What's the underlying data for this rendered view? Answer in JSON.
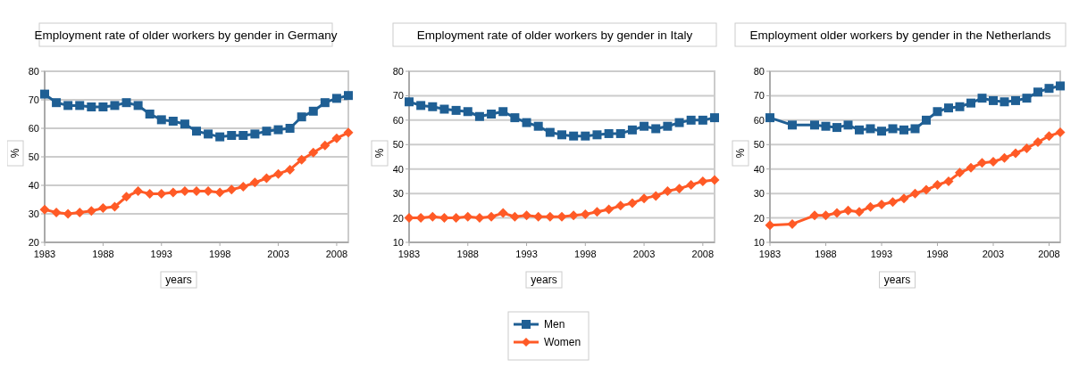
{
  "chart_data": [
    {
      "type": "line",
      "title": "Employment rate of older workers by gender in Germany",
      "xlabel": "years",
      "ylabel": "%",
      "x": [
        1983,
        1984,
        1985,
        1986,
        1987,
        1988,
        1989,
        1990,
        1991,
        1992,
        1993,
        1994,
        1995,
        1996,
        1997,
        1998,
        1999,
        2000,
        2001,
        2002,
        2003,
        2004,
        2005,
        2006,
        2007,
        2008,
        2009
      ],
      "xlim": [
        1983,
        2009
      ],
      "xticks": [
        1983,
        1988,
        1993,
        1998,
        2003,
        2008
      ],
      "ylim": [
        20,
        80
      ],
      "yticks": [
        20,
        30,
        40,
        50,
        60,
        70,
        80
      ],
      "grid": "y",
      "legend": false,
      "series": [
        {
          "color": "#1f5f94",
          "marker": "square",
          "values": [
            72,
            69,
            68,
            68,
            67.5,
            67.5,
            68,
            69,
            68,
            65,
            63,
            62.5,
            61.5,
            59,
            58,
            57,
            57.5,
            57.5,
            58,
            59,
            59.5,
            60,
            64,
            66,
            69,
            70.5,
            71.5
          ]
        },
        {
          "color": "#ff5a26",
          "marker": "diamond",
          "values": [
            31.5,
            30.5,
            30,
            30.5,
            31,
            32,
            32.5,
            36,
            38,
            37,
            37,
            37.5,
            38,
            38,
            38,
            37.5,
            38.5,
            39.5,
            41,
            42.5,
            44,
            45.5,
            49,
            51.5,
            54,
            56.5,
            58.5
          ]
        }
      ]
    },
    {
      "type": "line",
      "title": "Employment rate of older workers by gender in Italy",
      "xlabel": "years",
      "ylabel": "%",
      "x": [
        1983,
        1984,
        1985,
        1986,
        1987,
        1988,
        1989,
        1990,
        1991,
        1992,
        1993,
        1994,
        1995,
        1996,
        1997,
        1998,
        1999,
        2000,
        2001,
        2002,
        2003,
        2004,
        2005,
        2006,
        2007,
        2008,
        2009
      ],
      "xlim": [
        1983,
        2009
      ],
      "xticks": [
        1983,
        1988,
        1993,
        1998,
        2003,
        2008
      ],
      "ylim": [
        10,
        80
      ],
      "yticks": [
        10,
        20,
        30,
        40,
        50,
        60,
        70,
        80
      ],
      "grid": "y",
      "legend": "bottom",
      "series": [
        {
          "name": "Men",
          "color": "#1f5f94",
          "marker": "square",
          "values": [
            67.5,
            66,
            65.5,
            64.5,
            64,
            63.5,
            61.5,
            62.5,
            63.5,
            61,
            59,
            57.5,
            55,
            54,
            53.5,
            53.5,
            54,
            54.5,
            54.5,
            56,
            57.5,
            56.5,
            57.5,
            59,
            60,
            60,
            61
          ]
        },
        {
          "name": "Women",
          "color": "#ff5a26",
          "marker": "diamond",
          "values": [
            20,
            20,
            20.5,
            20,
            20,
            20.5,
            20,
            20.5,
            22,
            20.5,
            21,
            20.5,
            20.5,
            20.5,
            21,
            21.5,
            22.5,
            23.5,
            25,
            26,
            28,
            29,
            31,
            32,
            33.5,
            35,
            35.5
          ]
        }
      ]
    },
    {
      "type": "line",
      "title": "Employment older workers by gender in the Netherlands",
      "xlabel": "years",
      "ylabel": "%",
      "x": [
        1983,
        1985,
        1987,
        1988,
        1989,
        1990,
        1991,
        1992,
        1993,
        1994,
        1995,
        1996,
        1997,
        1998,
        1999,
        2000,
        2001,
        2002,
        2003,
        2004,
        2005,
        2006,
        2007,
        2008,
        2009
      ],
      "xlim": [
        1983,
        2009
      ],
      "xticks": [
        1983,
        1988,
        1993,
        1998,
        2003,
        2008
      ],
      "ylim": [
        10,
        80
      ],
      "yticks": [
        10,
        20,
        30,
        40,
        50,
        60,
        70,
        80
      ],
      "grid": "y",
      "legend": false,
      "series": [
        {
          "color": "#1f5f94",
          "marker": "square",
          "values": [
            61,
            58,
            58,
            57.5,
            57,
            58,
            56,
            56.5,
            55.5,
            56.5,
            56,
            56.5,
            60,
            63.5,
            65,
            65.5,
            67,
            69,
            68,
            67.5,
            68,
            69,
            71.5,
            73,
            74
          ]
        },
        {
          "color": "#ff5a26",
          "marker": "diamond",
          "values": [
            17,
            17.5,
            21,
            21,
            22,
            23,
            22.5,
            24.5,
            25.5,
            26.5,
            28,
            30,
            31.5,
            33.5,
            35,
            38.5,
            40.5,
            42.5,
            43,
            44.5,
            46.5,
            48.5,
            51,
            53.5,
            55
          ]
        }
      ]
    }
  ]
}
